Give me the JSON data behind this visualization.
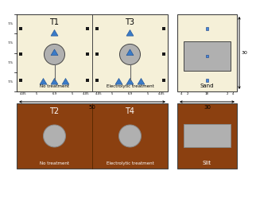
{
  "bg_color_top": "#f5f0d8",
  "bg_color_bottom": "#8B4010",
  "circle_color": "#b0b0b0",
  "square_color": "#1a1a1a",
  "blue_color": "#3a7bc8",
  "border_color": "#444444",
  "white": "#ffffff",
  "t1_label": "T1",
  "t3_label": "T3",
  "t2_label": "T2",
  "t4_label": "T4",
  "no_treat": "No treatment",
  "elec_treat": "Electrolytic treatment",
  "sand_label": "Sand",
  "slit_label": "Slit",
  "dim_50": "50",
  "dim_30": "30",
  "dim_left": [
    "7.5",
    "7.5",
    "7.5",
    "7.5"
  ],
  "dim_bottom_t1": [
    "4.05",
    "5",
    "6.9",
    "5",
    "4.05"
  ],
  "dim_bottom_tr": [
    "4",
    "2",
    "18",
    "2",
    "4"
  ],
  "dim_right": "30"
}
